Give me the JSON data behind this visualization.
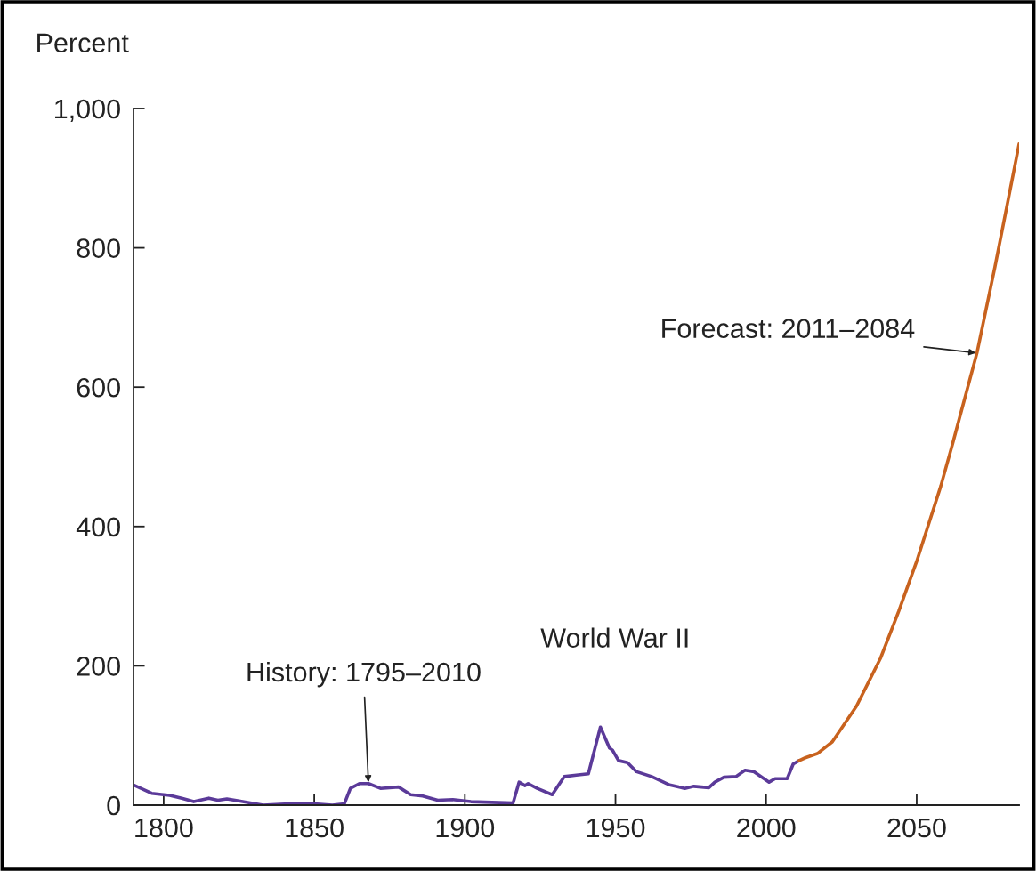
{
  "chart_data": {
    "type": "line",
    "ylabel": "Percent",
    "xlim": [
      1790,
      2084
    ],
    "xticks": [
      1800,
      1850,
      1900,
      1950,
      2000,
      2050
    ],
    "ylim": [
      0,
      1000
    ],
    "yticks": [
      0,
      200,
      400,
      600,
      800,
      {
        "value": 1000,
        "label": "1,000"
      }
    ],
    "grid": false,
    "legend": false,
    "marker": "none",
    "line_style": "solid",
    "series": [
      {
        "color": "#5b3a99",
        "x": [
          1790,
          1796,
          1802,
          1806,
          1810,
          1815,
          1818,
          1821,
          1825,
          1833,
          1843,
          1849,
          1856,
          1860,
          1862,
          1865,
          1868,
          1872,
          1878,
          1882,
          1886,
          1891,
          1896,
          1902,
          1916,
          1918,
          1920,
          1921,
          1924,
          1929,
          1931,
          1933,
          1937,
          1941,
          1945,
          1948,
          1949,
          1951,
          1954,
          1957,
          1962,
          1968,
          1973,
          1976,
          1981,
          1983,
          1986,
          1990,
          1993,
          1996,
          2001,
          2003,
          2007,
          2009,
          2011
        ],
        "values": [
          29,
          17,
          14,
          10,
          5,
          10,
          7,
          9,
          6,
          0,
          2,
          2,
          0,
          2,
          24,
          31,
          31,
          24,
          26,
          15,
          13,
          7,
          8,
          5,
          3,
          33,
          28,
          31,
          24,
          15,
          28,
          41,
          43,
          45,
          112,
          82,
          79,
          64,
          61,
          48,
          41,
          29,
          24,
          27,
          25,
          33,
          40,
          41,
          50,
          48,
          33,
          38,
          38,
          59,
          64
        ]
      },
      {
        "color": "#c8621e",
        "x": [
          2011,
          2013,
          2017,
          2022,
          2030,
          2038,
          2044,
          2050,
          2058,
          2062,
          2070,
          2076,
          2084
        ],
        "values": [
          64,
          68,
          74,
          91,
          142,
          211,
          278,
          350,
          458,
          520,
          649,
          773,
          949
        ]
      }
    ],
    "annotations": [
      {
        "text": "History: 1795–2010",
        "x": 1868,
        "y": 31
      },
      {
        "text": "World War II",
        "x": 1945,
        "y": 112
      },
      {
        "text": "Forecast: 2011–2084",
        "x": 2070,
        "y": 649
      }
    ]
  }
}
